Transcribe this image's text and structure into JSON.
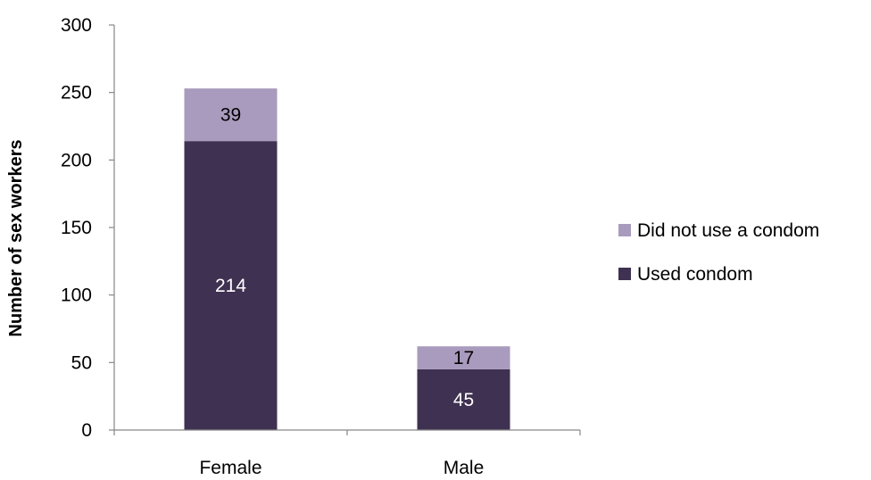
{
  "chart_data": {
    "type": "bar",
    "stacked": true,
    "title": "",
    "xlabel": "",
    "ylabel": "Number of sex workers",
    "categories": [
      "Female",
      "Male"
    ],
    "ylim": [
      0,
      300
    ],
    "yticks": [
      0,
      50,
      100,
      150,
      200,
      250,
      300
    ],
    "grid": false,
    "legend_position": "right",
    "series": [
      {
        "name": "Used condom",
        "values": [
          214,
          45
        ],
        "color": "#3f3151",
        "label_color": "#ffffff"
      },
      {
        "name": "Did not use a condom",
        "values": [
          39,
          17
        ],
        "color": "#a99bbd",
        "label_color": "#000000"
      }
    ]
  }
}
